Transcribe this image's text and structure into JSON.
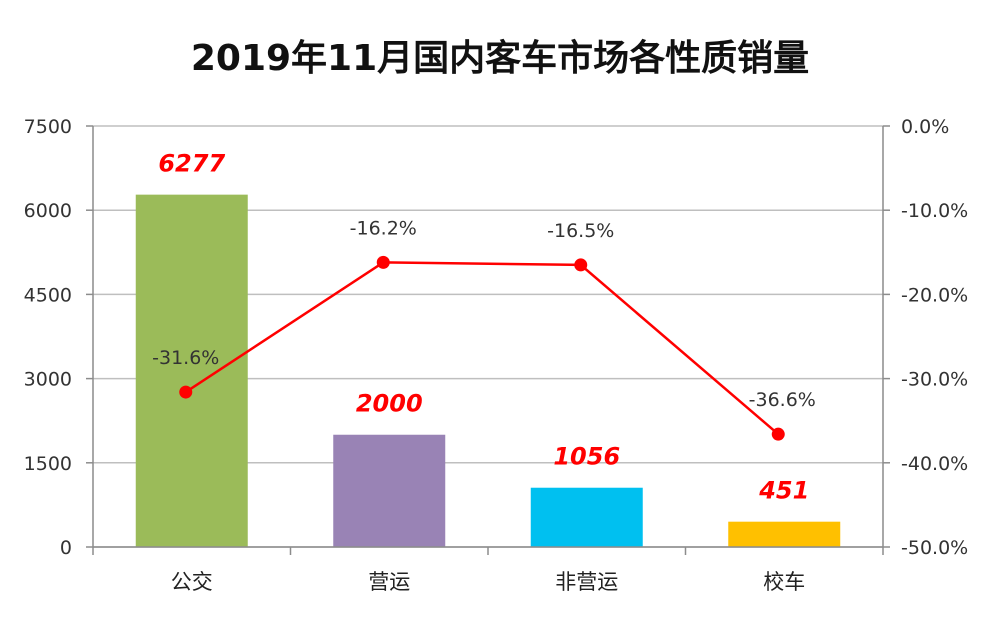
{
  "chart_data": {
    "type": "bar",
    "title": "2019年11月国内客车市场各性质销量",
    "categories": [
      "公交",
      "营运",
      "非营运",
      "校车"
    ],
    "series": [
      {
        "type": "bar",
        "axis": "left",
        "values": [
          6277,
          2000,
          1056,
          451
        ],
        "colors": [
          "#9bbb59",
          "#9983b5",
          "#00c0f0",
          "#ffc000"
        ]
      },
      {
        "type": "line",
        "axis": "right",
        "values": [
          -31.6,
          -16.2,
          -16.5,
          -36.6
        ],
        "labels": [
          "-31.6%",
          "-16.2%",
          "-16.5%",
          "-36.6%"
        ],
        "color": "#ff0000"
      }
    ],
    "bar_labels": [
      "6277",
      "2000",
      "1056",
      "451"
    ],
    "y_left": {
      "min": 0,
      "max": 7500,
      "ticks": [
        0,
        1500,
        3000,
        4500,
        6000,
        7500
      ],
      "tick_labels": [
        "0",
        "1500",
        "3000",
        "4500",
        "6000",
        "7500"
      ]
    },
    "y_right": {
      "min": -50,
      "max": 0,
      "ticks": [
        0,
        -10,
        -20,
        -30,
        -40,
        -50
      ],
      "tick_labels": [
        "0.0%",
        "-10.0%",
        "-20.0%",
        "-30.0%",
        "-40.0%",
        "-50.0%"
      ]
    },
    "grid": true,
    "legend": "none"
  }
}
